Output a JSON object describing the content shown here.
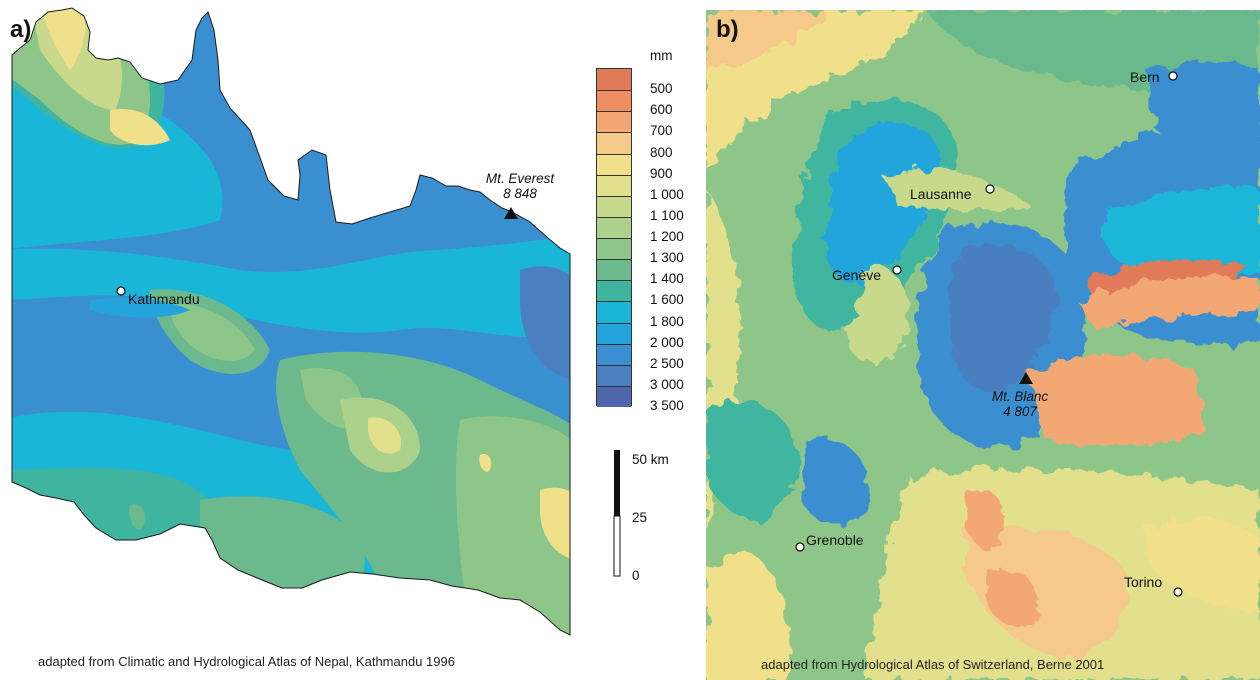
{
  "panel_a": {
    "label": "a)",
    "credit": "adapted from Climatic and Hydrological Atlas of Nepal, Kathmandu 1996",
    "places": {
      "kathmandu": "Kathmandu"
    },
    "peak": {
      "name": "Mt. Everest",
      "elevation": "8 848"
    }
  },
  "panel_b": {
    "label": "b)",
    "credit": "adapted from Hydrological Atlas of Switzerland, Berne 2001",
    "places": {
      "bern": "Bern",
      "lausanne": "Lausanne",
      "geneve": "Genève",
      "grenoble": "Grenoble",
      "torino": "Torino"
    },
    "peak": {
      "name": "Mt. Blanc",
      "elevation": "4 807"
    }
  },
  "legend": {
    "unit": "mm",
    "classes": [
      {
        "label": "500",
        "color": "#e07a58"
      },
      {
        "label": "600",
        "color": "#ec8d62"
      },
      {
        "label": "700",
        "color": "#f3a873"
      },
      {
        "label": "800",
        "color": "#f4c98a"
      },
      {
        "label": "900",
        "color": "#f1e08a"
      },
      {
        "label": "1 000",
        "color": "#e2e08c"
      },
      {
        "label": "1 100",
        "color": "#c8d98c"
      },
      {
        "label": "1 200",
        "color": "#acd18a"
      },
      {
        "label": "1 300",
        "color": "#8dc688"
      },
      {
        "label": "1 400",
        "color": "#6bb98d"
      },
      {
        "label": "1 600",
        "color": "#3fb5a0"
      },
      {
        "label": "1 800",
        "color": "#1ab6d8"
      },
      {
        "label": "2 000",
        "color": "#23a4dc"
      },
      {
        "label": "2 500",
        "color": "#3a8fd0"
      },
      {
        "label": "3 000",
        "color": "#4a7fc0"
      },
      {
        "label": "3 500",
        "color": "#5066ac"
      }
    ]
  },
  "scale_bar": {
    "unit": "km",
    "ticks": [
      "50 km",
      "25",
      "0"
    ]
  }
}
